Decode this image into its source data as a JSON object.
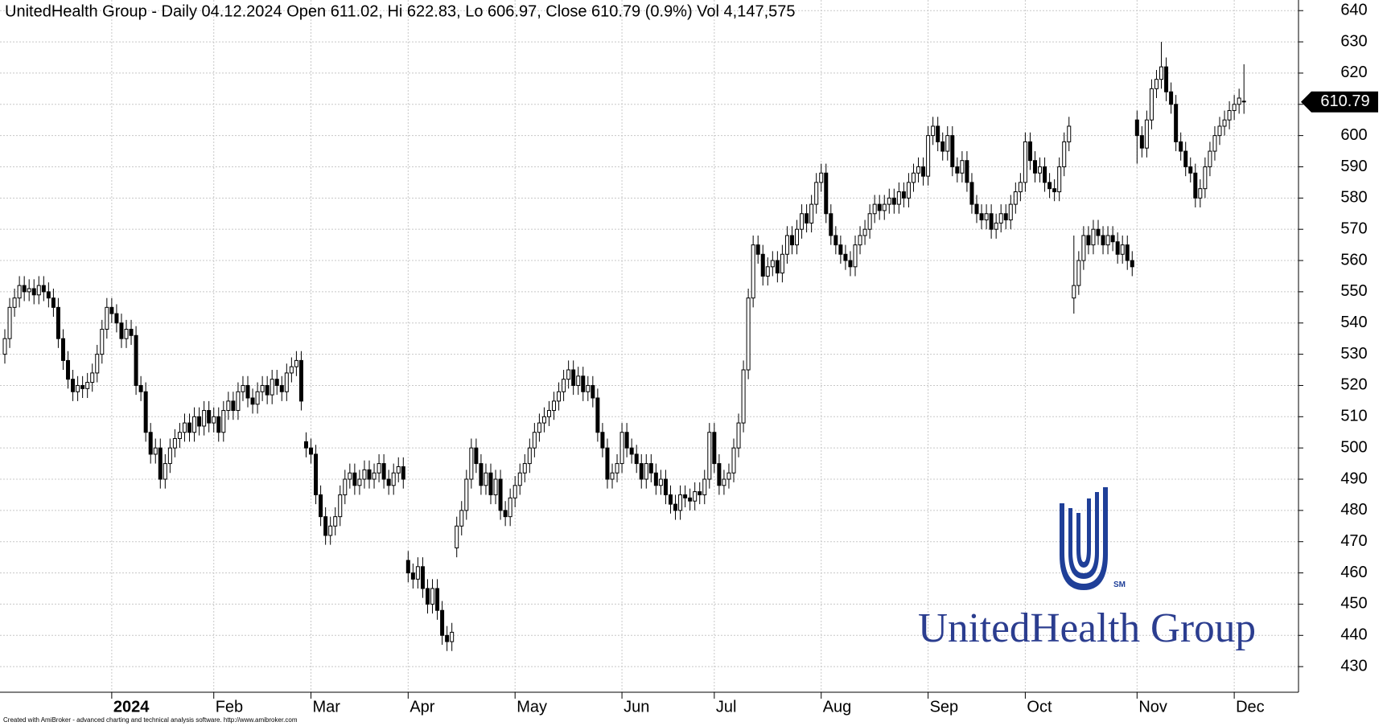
{
  "chart_data": {
    "type": "candlestick",
    "title": "UnitedHealth Group - Daily 04.12.2024 Open 611.02, Hi 622.83, Lo 606.97, Close 610.79 (0.9%) Vol 4,147,575",
    "logo_text": "UnitedHealth Group",
    "logo_mark": "SM",
    "credit": "Created with AmiBroker - advanced charting and technical analysis software. http://www.amibroker.com",
    "grid": true,
    "up_color": "#ffffff",
    "down_color": "#000000",
    "ylim": [
      421.8,
      643.4
    ],
    "yticks": [
      430,
      440,
      450,
      460,
      470,
      480,
      490,
      500,
      510,
      520,
      530,
      540,
      550,
      560,
      570,
      580,
      590,
      600,
      610,
      620,
      630,
      640
    ],
    "categories": [
      null,
      null,
      null,
      null,
      null,
      null,
      null,
      null,
      null,
      null,
      null,
      null,
      null,
      null,
      null,
      null,
      null,
      null,
      null,
      null,
      null,
      null,
      "2024",
      null,
      null,
      null,
      null,
      null,
      null,
      null,
      null,
      null,
      null,
      null,
      null,
      null,
      null,
      null,
      null,
      null,
      null,
      null,
      null,
      "Feb",
      null,
      null,
      null,
      null,
      null,
      null,
      null,
      null,
      null,
      null,
      null,
      null,
      null,
      null,
      null,
      null,
      null,
      null,
      null,
      "Mar",
      null,
      null,
      null,
      null,
      null,
      null,
      null,
      null,
      null,
      null,
      null,
      null,
      null,
      null,
      null,
      null,
      null,
      null,
      null,
      "Apr",
      null,
      null,
      null,
      null,
      null,
      null,
      null,
      null,
      null,
      null,
      null,
      null,
      null,
      null,
      null,
      null,
      null,
      null,
      null,
      null,
      null,
      "May",
      null,
      null,
      null,
      null,
      null,
      null,
      null,
      null,
      null,
      null,
      null,
      null,
      null,
      null,
      null,
      null,
      null,
      null,
      null,
      null,
      null,
      "Jun",
      null,
      null,
      null,
      null,
      null,
      null,
      null,
      null,
      null,
      null,
      null,
      null,
      null,
      null,
      null,
      null,
      null,
      null,
      "Jul",
      null,
      null,
      null,
      null,
      null,
      null,
      null,
      null,
      null,
      null,
      null,
      null,
      null,
      null,
      null,
      null,
      null,
      null,
      null,
      null,
      null,
      "Aug",
      null,
      null,
      null,
      null,
      null,
      null,
      null,
      null,
      null,
      null,
      null,
      null,
      null,
      null,
      null,
      null,
      null,
      null,
      null,
      null,
      null,
      "Sep",
      null,
      null,
      null,
      null,
      null,
      null,
      null,
      null,
      null,
      null,
      null,
      null,
      null,
      null,
      null,
      null,
      null,
      null,
      null,
      "Oct",
      null,
      null,
      null,
      null,
      null,
      null,
      null,
      null,
      null,
      null,
      null,
      null,
      null,
      null,
      null,
      null,
      null,
      null,
      null,
      null,
      null,
      null,
      "Nov",
      null,
      null,
      null,
      null,
      null,
      null,
      null,
      null,
      null,
      null,
      null,
      null,
      null,
      null,
      null,
      null,
      null,
      null,
      null,
      "Dec",
      null,
      null
    ],
    "open": [
      530,
      535,
      545,
      548,
      552,
      550,
      551,
      549,
      552,
      550,
      548,
      545,
      535,
      528,
      522,
      518,
      520,
      519,
      521,
      524,
      530,
      538,
      545,
      543,
      540,
      535,
      538,
      536,
      520,
      518,
      505,
      498,
      500,
      490,
      495,
      500,
      503,
      505,
      508,
      505,
      510,
      507,
      512,
      508,
      510,
      505,
      512,
      515,
      512,
      518,
      520,
      516,
      514,
      518,
      520,
      517,
      522,
      520,
      518,
      524,
      526,
      528,
      502,
      500,
      498,
      485,
      478,
      472,
      475,
      478,
      485,
      490,
      492,
      488,
      490,
      493,
      490,
      492,
      495,
      490,
      488,
      492,
      494,
      464,
      460,
      458,
      462,
      455,
      450,
      455,
      448,
      440,
      438,
      468,
      475,
      480,
      490,
      500,
      495,
      488,
      492,
      485,
      490,
      480,
      478,
      484,
      488,
      492,
      495,
      500,
      505,
      508,
      510,
      512,
      515,
      518,
      522,
      525,
      520,
      523,
      518,
      520,
      516,
      505,
      500,
      490,
      492,
      495,
      505,
      500,
      498,
      495,
      490,
      495,
      492,
      488,
      490,
      485,
      482,
      480,
      485,
      484,
      483,
      486,
      485,
      490,
      505,
      495,
      488,
      490,
      492,
      500,
      508,
      525,
      548,
      565,
      562,
      555,
      558,
      560,
      556,
      562,
      568,
      565,
      570,
      575,
      572,
      578,
      585,
      588,
      575,
      568,
      565,
      562,
      560,
      558,
      565,
      568,
      570,
      575,
      578,
      576,
      578,
      580,
      578,
      582,
      580,
      585,
      588,
      590,
      587,
      600,
      603,
      598,
      595,
      600,
      590,
      588,
      592,
      585,
      578,
      575,
      573,
      575,
      570,
      572,
      575,
      573,
      578,
      582,
      585,
      598,
      592,
      588,
      590,
      585,
      583,
      582,
      590,
      598,
      548,
      552,
      560,
      568,
      565,
      570,
      568,
      565,
      568,
      566,
      562,
      565,
      560,
      605,
      600,
      596,
      605,
      615,
      618,
      622,
      614,
      610,
      598,
      595,
      590,
      588,
      580,
      583,
      590,
      595,
      600,
      603,
      605,
      608,
      610,
      611.02
    ],
    "high": [
      538,
      548,
      551,
      555,
      555,
      554,
      554,
      555,
      555,
      553,
      551,
      548,
      538,
      531,
      525,
      523,
      523,
      524,
      527,
      533,
      541,
      548,
      548,
      546,
      543,
      541,
      541,
      539,
      523,
      521,
      508,
      503,
      503,
      498,
      503,
      506,
      508,
      511,
      511,
      513,
      513,
      515,
      515,
      513,
      513,
      515,
      518,
      518,
      521,
      523,
      523,
      519,
      521,
      523,
      523,
      525,
      525,
      523,
      527,
      529,
      531,
      531,
      505,
      503,
      501,
      488,
      481,
      478,
      481,
      488,
      493,
      495,
      495,
      493,
      496,
      496,
      495,
      498,
      498,
      493,
      495,
      497,
      497,
      467,
      463,
      465,
      465,
      458,
      458,
      458,
      451,
      443,
      444,
      478,
      483,
      493,
      503,
      503,
      498,
      495,
      495,
      493,
      493,
      483,
      487,
      491,
      495,
      498,
      503,
      508,
      511,
      513,
      515,
      518,
      521,
      525,
      528,
      528,
      526,
      526,
      523,
      523,
      519,
      508,
      503,
      495,
      498,
      508,
      508,
      503,
      501,
      498,
      498,
      498,
      495,
      493,
      493,
      488,
      485,
      488,
      488,
      487,
      489,
      489,
      493,
      508,
      508,
      498,
      493,
      495,
      503,
      511,
      528,
      551,
      568,
      568,
      565,
      561,
      563,
      563,
      565,
      571,
      571,
      573,
      578,
      578,
      581,
      588,
      591,
      591,
      578,
      571,
      568,
      565,
      563,
      568,
      571,
      573,
      578,
      581,
      581,
      581,
      583,
      583,
      585,
      585,
      588,
      591,
      593,
      593,
      603,
      606,
      606,
      601,
      603,
      603,
      593,
      595,
      595,
      588,
      581,
      578,
      578,
      578,
      575,
      578,
      578,
      581,
      585,
      588,
      601,
      601,
      595,
      593,
      593,
      588,
      586,
      593,
      601,
      606,
      568,
      563,
      571,
      571,
      573,
      573,
      571,
      571,
      571,
      569,
      568,
      568,
      563,
      608,
      603,
      608,
      618,
      621,
      630,
      625,
      617,
      613,
      601,
      598,
      593,
      591,
      586,
      593,
      598,
      603,
      606,
      608,
      611,
      613,
      615,
      622.83
    ],
    "low": [
      527,
      532,
      542,
      545,
      547,
      547,
      546,
      546,
      547,
      545,
      542,
      532,
      525,
      519,
      515,
      515,
      516,
      516,
      518,
      521,
      527,
      535,
      540,
      537,
      532,
      532,
      533,
      517,
      515,
      502,
      495,
      495,
      487,
      487,
      492,
      497,
      500,
      502,
      502,
      502,
      504,
      504,
      505,
      505,
      502,
      502,
      509,
      509,
      509,
      515,
      513,
      511,
      511,
      515,
      514,
      514,
      517,
      515,
      515,
      521,
      523,
      512,
      497,
      495,
      482,
      475,
      469,
      469,
      472,
      475,
      482,
      487,
      485,
      485,
      487,
      487,
      487,
      489,
      487,
      485,
      485,
      489,
      487,
      457,
      455,
      455,
      452,
      447,
      447,
      445,
      437,
      435,
      435,
      465,
      472,
      477,
      487,
      492,
      485,
      485,
      482,
      482,
      477,
      475,
      475,
      481,
      485,
      489,
      492,
      497,
      502,
      505,
      507,
      509,
      512,
      515,
      519,
      517,
      517,
      515,
      515,
      513,
      502,
      497,
      487,
      487,
      489,
      492,
      497,
      495,
      492,
      487,
      487,
      489,
      485,
      485,
      482,
      479,
      477,
      477,
      481,
      480,
      480,
      482,
      482,
      487,
      492,
      485,
      485,
      487,
      489,
      497,
      505,
      522,
      545,
      559,
      552,
      552,
      555,
      553,
      553,
      559,
      562,
      562,
      567,
      569,
      569,
      575,
      582,
      572,
      565,
      562,
      559,
      557,
      555,
      555,
      562,
      565,
      567,
      572,
      573,
      573,
      575,
      575,
      575,
      577,
      577,
      582,
      585,
      584,
      584,
      597,
      595,
      592,
      592,
      587,
      585,
      585,
      582,
      575,
      572,
      570,
      570,
      567,
      567,
      569,
      570,
      570,
      575,
      579,
      582,
      589,
      585,
      585,
      582,
      580,
      579,
      579,
      587,
      595,
      543,
      549,
      557,
      562,
      562,
      565,
      562,
      562,
      563,
      559,
      559,
      557,
      555,
      591,
      593,
      593,
      602,
      612,
      615,
      611,
      607,
      595,
      592,
      587,
      585,
      577,
      577,
      580,
      587,
      592,
      597,
      600,
      602,
      605,
      607,
      606.97
    ],
    "close": [
      535,
      545,
      548,
      552,
      550,
      551,
      549,
      552,
      550,
      548,
      545,
      535,
      528,
      522,
      518,
      520,
      519,
      521,
      524,
      530,
      538,
      545,
      543,
      540,
      535,
      538,
      536,
      520,
      518,
      505,
      498,
      500,
      490,
      495,
      500,
      503,
      505,
      508,
      505,
      510,
      507,
      512,
      508,
      510,
      505,
      512,
      515,
      512,
      518,
      520,
      516,
      514,
      518,
      520,
      517,
      522,
      520,
      518,
      524,
      526,
      528,
      515,
      500,
      498,
      485,
      478,
      472,
      475,
      478,
      485,
      490,
      492,
      488,
      490,
      493,
      490,
      492,
      495,
      490,
      488,
      492,
      494,
      490,
      460,
      458,
      462,
      455,
      450,
      455,
      448,
      440,
      438,
      441,
      475,
      480,
      490,
      500,
      495,
      488,
      492,
      485,
      490,
      480,
      478,
      484,
      488,
      492,
      495,
      500,
      505,
      508,
      510,
      512,
      515,
      518,
      522,
      525,
      520,
      523,
      518,
      520,
      516,
      505,
      500,
      490,
      492,
      495,
      505,
      500,
      498,
      495,
      490,
      495,
      492,
      488,
      490,
      485,
      482,
      480,
      485,
      484,
      483,
      486,
      485,
      490,
      505,
      495,
      488,
      490,
      492,
      500,
      508,
      525,
      548,
      565,
      562,
      555,
      558,
      560,
      556,
      562,
      568,
      565,
      570,
      575,
      572,
      578,
      585,
      588,
      575,
      568,
      565,
      562,
      560,
      558,
      565,
      568,
      570,
      575,
      578,
      576,
      578,
      580,
      578,
      582,
      580,
      585,
      588,
      590,
      587,
      600,
      603,
      598,
      595,
      600,
      590,
      588,
      592,
      585,
      578,
      575,
      573,
      575,
      570,
      572,
      575,
      573,
      578,
      582,
      585,
      598,
      592,
      588,
      590,
      585,
      583,
      582,
      590,
      598,
      603,
      552,
      560,
      568,
      565,
      570,
      568,
      565,
      568,
      566,
      562,
      565,
      560,
      558,
      600,
      596,
      605,
      615,
      618,
      622,
      614,
      610,
      598,
      595,
      590,
      588,
      580,
      583,
      590,
      595,
      600,
      603,
      605,
      608,
      610,
      612,
      610.79
    ]
  }
}
